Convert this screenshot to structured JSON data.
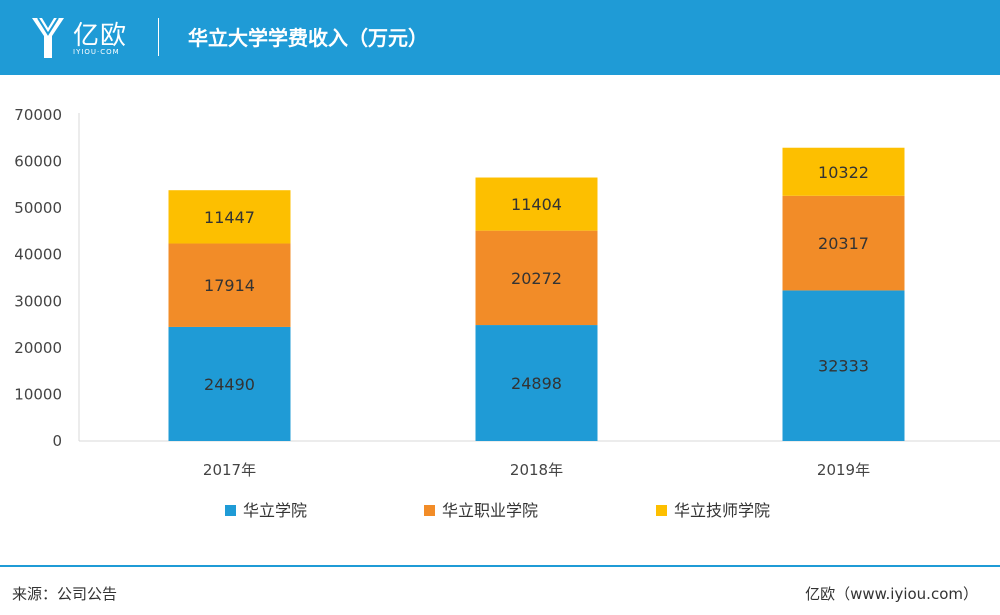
{
  "header": {
    "logo_text": "亿欧",
    "logo_sub": "IYIOU·COM",
    "title": "华立大学学费收入（万元）",
    "background": "#1f9bd6"
  },
  "footer": {
    "source": "来源：公司公告",
    "brand": "亿欧（www.iyiou.com）"
  },
  "chart_data": {
    "type": "bar",
    "stacked": true,
    "title": "华立大学学费收入（万元）",
    "categories": [
      "2017年",
      "2018年",
      "2019年"
    ],
    "series": [
      {
        "name": "华立学院",
        "color": "#1f9bd6",
        "values": [
          24490,
          24898,
          32333
        ]
      },
      {
        "name": "华立职业学院",
        "color": "#f28c28",
        "values": [
          17914,
          20272,
          20317
        ]
      },
      {
        "name": "华立技师学院",
        "color": "#fdbf00",
        "values": [
          11447,
          11404,
          10322
        ]
      }
    ],
    "ylim": [
      0,
      70000
    ],
    "yticks": [
      0,
      10000,
      20000,
      30000,
      40000,
      50000,
      60000,
      70000
    ],
    "grid": false,
    "legend": "bottom"
  }
}
